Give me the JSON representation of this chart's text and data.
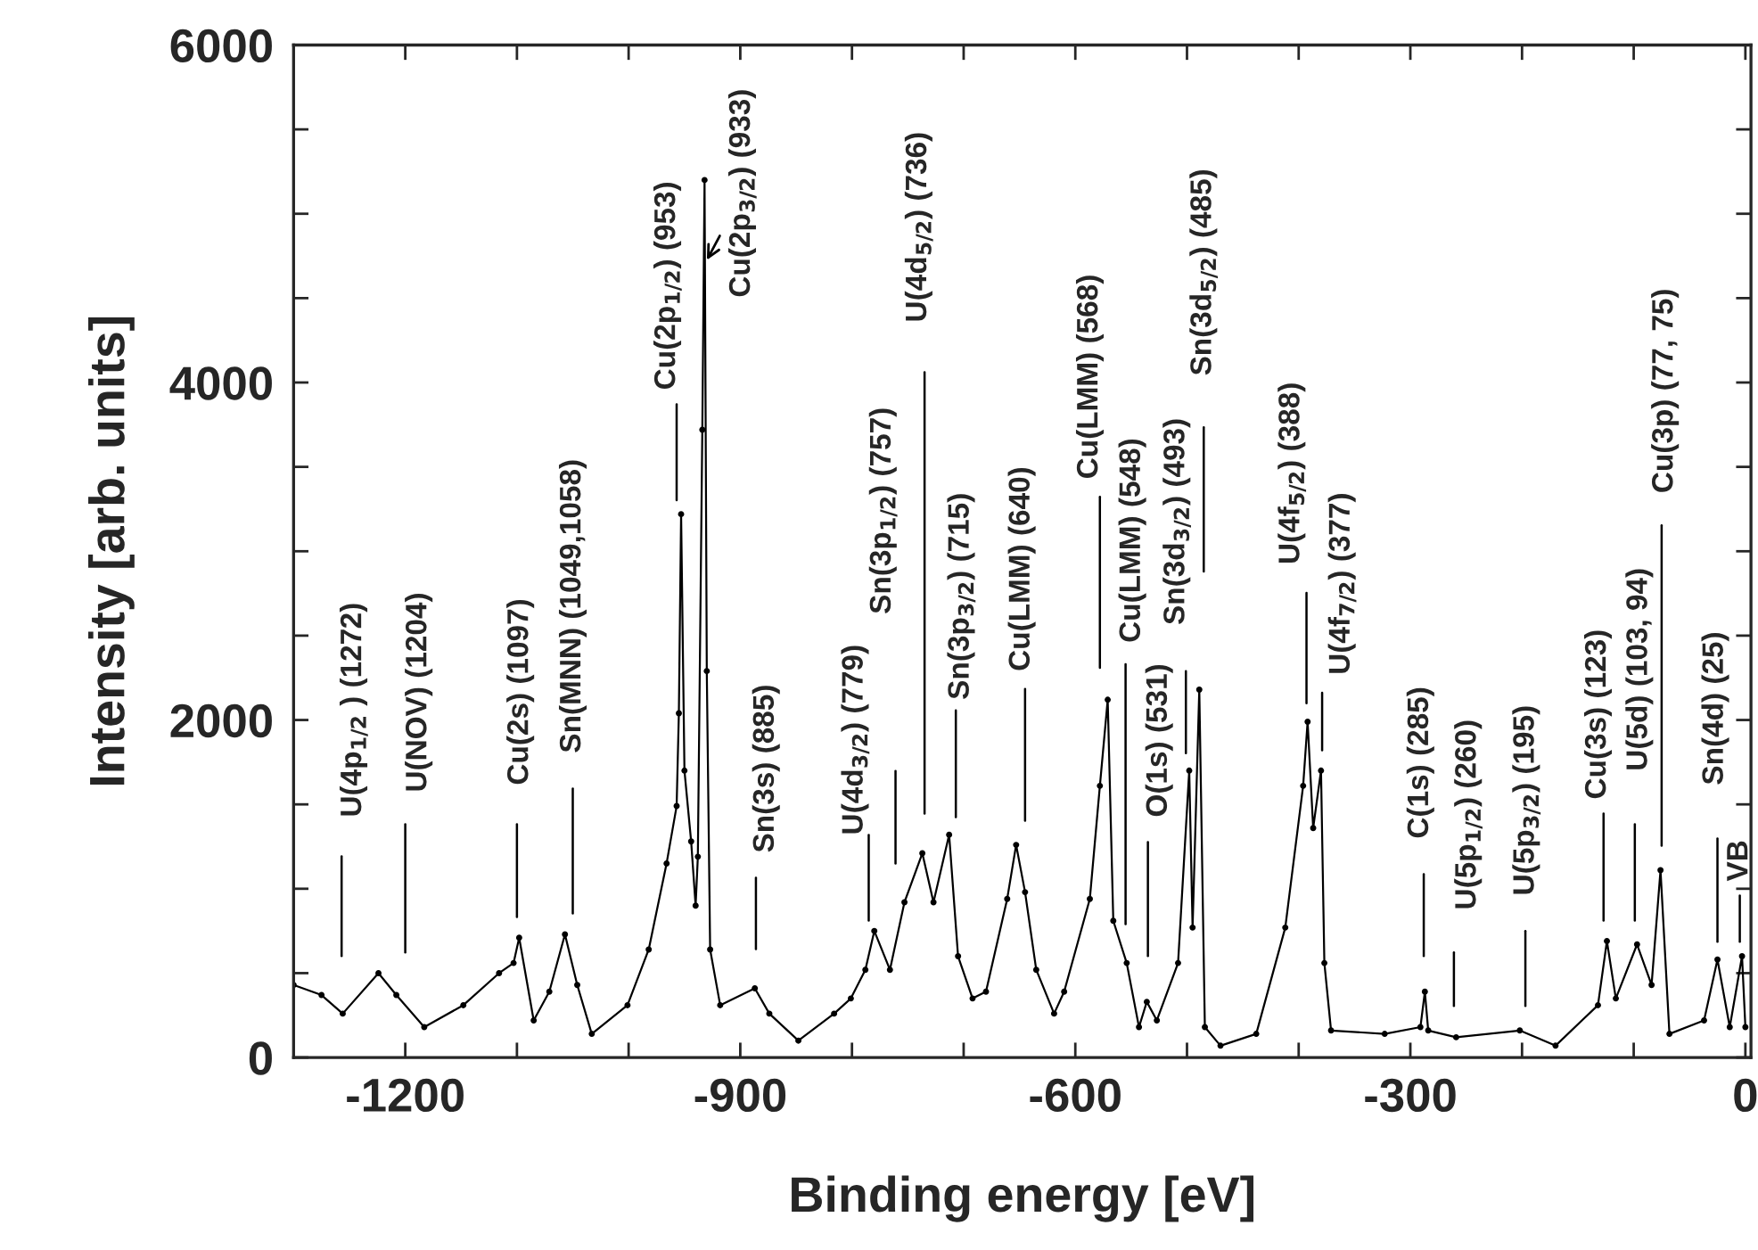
{
  "chart_data": {
    "type": "line",
    "xlabel": "Binding energy [eV]",
    "ylabel": "Intensity [arb. units]",
    "x": [
      -1300,
      -1275,
      -1256,
      -1224,
      -1208,
      -1183,
      -1148,
      -1116,
      -1103,
      -1098,
      -1085,
      -1071,
      -1057,
      -1046,
      -1033,
      -1001,
      -982,
      -966,
      -957,
      -955,
      -953,
      -950,
      -944,
      -940,
      -938,
      -934,
      -932,
      -930,
      -927,
      -918,
      -887,
      -874,
      -848,
      -816,
      -801,
      -788,
      -780,
      -766,
      -753,
      -737,
      -727,
      -713,
      -705,
      -692,
      -680,
      -661,
      -653,
      -645,
      -635,
      -619,
      -610,
      -587,
      -578,
      -571,
      -566,
      -554,
      -543,
      -536,
      -527,
      -508,
      -498,
      -495,
      -489,
      -484,
      -470,
      -438,
      -412,
      -396,
      -392,
      -387,
      -380,
      -377,
      -371,
      -323,
      -291,
      -287,
      -284,
      -259,
      -202,
      -170,
      -132,
      -124,
      -116,
      -97,
      -84,
      -76,
      -68,
      -37,
      -25,
      -14,
      -3,
      0
    ],
    "series": [
      {
        "color": "#000000",
        "values": [
          430,
          370,
          260,
          500,
          370,
          180,
          310,
          500,
          560,
          710,
          220,
          390,
          730,
          430,
          140,
          310,
          640,
          1150,
          1490,
          2040,
          3220,
          1700,
          1280,
          900,
          1190,
          3720,
          5200,
          2290,
          640,
          310,
          410,
          260,
          100,
          260,
          350,
          520,
          750,
          520,
          920,
          1210,
          920,
          1320,
          600,
          350,
          390,
          940,
          1260,
          980,
          520,
          260,
          390,
          940,
          1610,
          2120,
          810,
          560,
          180,
          330,
          220,
          560,
          1700,
          770,
          2180,
          180,
          70,
          140,
          770,
          1610,
          1990,
          1360,
          1700,
          560,
          160,
          140,
          180,
          390,
          160,
          120,
          160,
          70,
          310,
          690,
          350,
          670,
          430,
          1110,
          140,
          220,
          580,
          180,
          600,
          180
        ]
      }
    ],
    "xlim": [
      -1300,
      5
    ],
    "xticks": [
      {
        "value": -1200,
        "label": "-1200"
      },
      {
        "value": -1100,
        "label": null
      },
      {
        "value": -1000,
        "label": null
      },
      {
        "value": -900,
        "label": "-900"
      },
      {
        "value": -800,
        "label": null
      },
      {
        "value": -700,
        "label": null
      },
      {
        "value": -600,
        "label": "-600"
      },
      {
        "value": -500,
        "label": null
      },
      {
        "value": -400,
        "label": null
      },
      {
        "value": -300,
        "label": "-300"
      },
      {
        "value": -200,
        "label": null
      },
      {
        "value": -100,
        "label": null
      },
      0
    ],
    "ylim": [
      0,
      6000
    ],
    "yticks": [
      0,
      {
        "value": 500,
        "label": null
      },
      {
        "value": 1000,
        "label": null
      },
      {
        "value": 1500,
        "label": null
      },
      2000,
      {
        "value": 2500,
        "label": null
      },
      {
        "value": 3000,
        "label": null
      },
      {
        "value": 3500,
        "label": null
      },
      4000,
      {
        "value": 4500,
        "label": null
      },
      {
        "value": 5000,
        "label": null
      },
      {
        "value": 5500,
        "label": null
      },
      6000
    ],
    "grid": false,
    "legend": false,
    "marker": "circle",
    "line_style": "solid",
    "annotations": [
      "U(4p$_{1/2}$ ) (1272)",
      "U(NOV) (1204)",
      "Cu(2s) (1097)",
      "Sn(MNN) (1049,1058)",
      "Cu(2p$_{1/2}$) (953)",
      "Cu(2p$_{3/2}$) (933)",
      "Sn(3s) (885)",
      "U(4d$_{3/2}$) (779)",
      "Sn(3p$_{1/2}$) (757)",
      "U(4d$_{5/2}$) (736)",
      "Sn(3p$_{3/2}$) (715)",
      "Cu(LMM) (640)",
      "Cu(LMM) (568)",
      "Cu(LMM) (548)",
      "O(1s) (531)",
      "Sn(3d$_{3/2}$) (493)",
      "Sn(3d$_{5/2}$) (485)",
      "U(4f$_{5/2}$) (388)",
      "U(4f$_{7/2}$) (377)",
      "C(1s) (285)",
      "U(5p$_{1/2}$) (260)",
      "U(5p$_{3/2}$) (195)",
      "Cu(3s) (123)",
      "U(5d) (103, 94)",
      "Cu(3p) (77, 75)",
      "Sn(4d) (25)",
      "VB"
    ]
  }
}
